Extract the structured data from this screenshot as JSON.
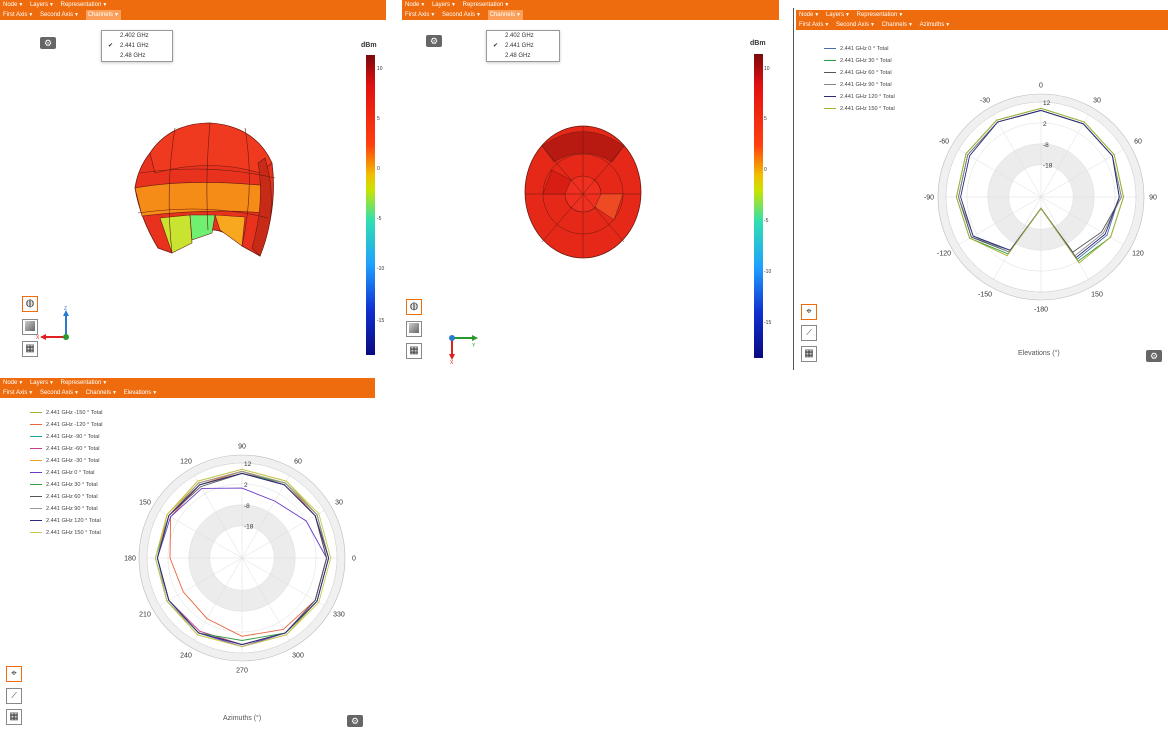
{
  "menus": {
    "node": "Node",
    "layers": "Layers",
    "representation": "Representation",
    "first_axis": "First Axis",
    "second_axis": "Second Axis",
    "channels": "Channels",
    "azimuths": "Azimuths",
    "elevations": "Elevations"
  },
  "channels_dropdown": [
    {
      "label": "2.402 GHz",
      "checked": false
    },
    {
      "label": "2.441 GHz",
      "checked": true
    },
    {
      "label": "2.48 GHz",
      "checked": false
    }
  ],
  "colorbar": {
    "unit": "dBm",
    "ticks": [
      "10",
      "5",
      "0",
      "-5",
      "-10",
      "-15"
    ]
  },
  "axes_3d_top_left": {
    "x": "X",
    "y": "Y",
    "z": "Z"
  },
  "axes_3d_top_middle": {
    "x": "X",
    "y": "Y"
  },
  "icons": {
    "gear": "gear-icon",
    "globe": "globe-icon",
    "plane": "plane-icon",
    "table": "table-icon",
    "polar": "polar-plot-icon",
    "cartesian": "cartesian-plot-icon"
  },
  "colors": {
    "toolbar": "#ee6c0e",
    "accent": "#ee6c0e"
  },
  "chart_data": [
    {
      "type": "polar",
      "xlabel": "Elevations (°)",
      "angle_labels": [
        "0",
        "30",
        "60",
        "90",
        "120",
        "150",
        "-180",
        "-150",
        "-120",
        "-90",
        "-60",
        "-30"
      ],
      "radial_ticks": [
        "12",
        "2",
        "-8",
        "-18"
      ],
      "rlim": [
        -28,
        12
      ],
      "series": [
        {
          "name": "2.441 GHz 0 ° Total",
          "color": "#4a6fa5",
          "values": [
            8,
            7,
            6,
            4,
            3,
            1,
            -28,
            -4,
            5,
            6,
            7,
            8
          ]
        },
        {
          "name": "2.441 GHz 30 ° Total",
          "color": "#2e9e3e",
          "values": [
            9,
            8,
            7,
            6,
            5,
            2,
            -28,
            -2,
            6,
            7,
            8,
            9
          ]
        },
        {
          "name": "2.441 GHz 60 ° Total",
          "color": "#555555",
          "values": [
            8,
            7,
            6,
            5,
            0,
            -3,
            -28,
            -3,
            5,
            6,
            7,
            8
          ]
        },
        {
          "name": "2.441 GHz 90 ° Total",
          "color": "#888888",
          "values": [
            8,
            7,
            6,
            5,
            1,
            -1,
            -28,
            -3,
            4,
            6,
            7,
            8
          ]
        },
        {
          "name": "2.441 GHz 120 ° Total",
          "color": "#2a2a7a",
          "values": [
            8,
            7,
            6,
            4,
            2,
            0,
            -28,
            -4,
            4,
            5,
            6,
            8
          ]
        },
        {
          "name": "2.441 GHz 150 ° Total",
          "color": "#a8b030",
          "values": [
            9,
            8,
            7,
            6,
            5,
            3,
            -28,
            -1,
            6,
            7,
            8,
            9
          ]
        }
      ]
    },
    {
      "type": "polar",
      "xlabel": "Azimuths (°)",
      "angle_labels": [
        "0",
        "30",
        "60",
        "90",
        "120",
        "150",
        "180",
        "210",
        "240",
        "270",
        "300",
        "330"
      ],
      "radial_ticks": [
        "12",
        "2",
        "-8",
        "-18"
      ],
      "rlim": [
        -28,
        12
      ],
      "series": [
        {
          "name": "2.441 GHz -150 ° Total",
          "color": "#a8b030",
          "values": [
            8,
            8,
            9,
            9,
            9,
            8,
            8,
            8,
            9,
            9,
            9,
            8
          ]
        },
        {
          "name": "2.441 GHz -120 ° Total",
          "color": "#e8643c",
          "values": [
            7,
            7,
            8,
            8,
            7,
            6,
            1,
            -1,
            0,
            4,
            6,
            7
          ]
        },
        {
          "name": "2.441 GHz -90 ° Total",
          "color": "#1aa0a0",
          "values": [
            8,
            8,
            8,
            8,
            8,
            7,
            8,
            8,
            8,
            8,
            8,
            8
          ]
        },
        {
          "name": "2.441 GHz -60 ° Total",
          "color": "#c83c8c",
          "values": [
            7,
            7,
            7,
            8,
            8,
            7,
            7,
            7,
            7,
            8,
            8,
            7
          ]
        },
        {
          "name": "2.441 GHz -30 ° Total",
          "color": "#e8a020",
          "values": [
            8,
            8,
            8,
            8,
            8,
            8,
            7,
            7,
            8,
            8,
            8,
            8
          ]
        },
        {
          "name": "2.441 GHz 0 ° Total",
          "color": "#6a3cc8",
          "values": [
            7,
            2,
            -2,
            0,
            5,
            6,
            7,
            7,
            8,
            9,
            8,
            7
          ]
        },
        {
          "name": "2.441 GHz 30 ° Total",
          "color": "#2e9e3e",
          "values": [
            8,
            8,
            8,
            7,
            7,
            7,
            7,
            7,
            8,
            6,
            8,
            8
          ]
        },
        {
          "name": "2.441 GHz 60 ° Total",
          "color": "#555555",
          "values": [
            7,
            7,
            7,
            7,
            6,
            7,
            7,
            7,
            8,
            8,
            8,
            7
          ]
        },
        {
          "name": "2.441 GHz 90 ° Total",
          "color": "#999999",
          "values": [
            8,
            8,
            8,
            8,
            8,
            7,
            7,
            8,
            8,
            8,
            8,
            8
          ]
        },
        {
          "name": "2.441 GHz 120 ° Total",
          "color": "#2a2a7a",
          "values": [
            8,
            7,
            7,
            7,
            7,
            7,
            7,
            7,
            8,
            8,
            8,
            8
          ]
        },
        {
          "name": "2.441 GHz 150 ° Total",
          "color": "#c8c850",
          "values": [
            9,
            9,
            9,
            9,
            9,
            8,
            8,
            8,
            9,
            9,
            9,
            9
          ]
        }
      ]
    }
  ]
}
